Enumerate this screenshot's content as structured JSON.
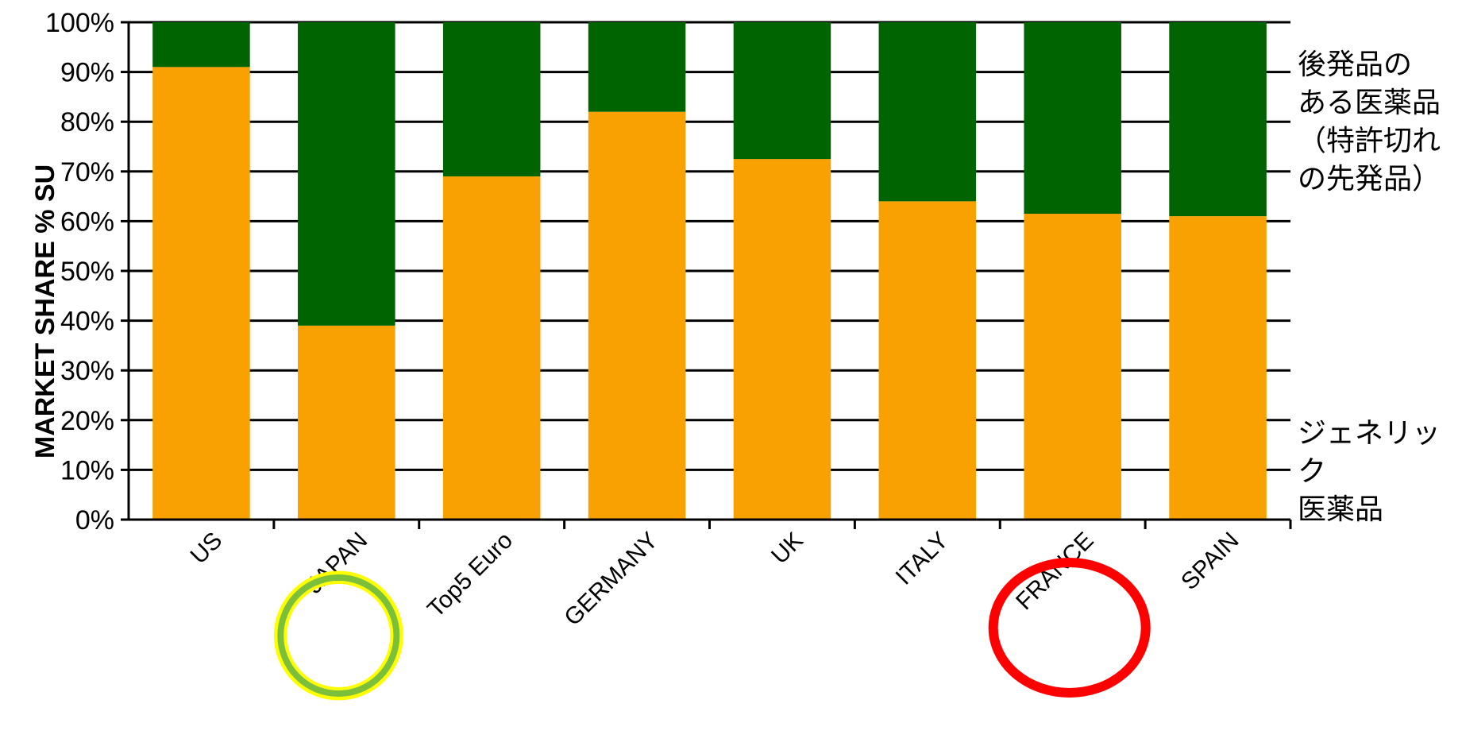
{
  "chart_data": {
    "type": "bar",
    "stacked": true,
    "title": "",
    "xlabel": "",
    "ylabel": "MARKET SHARE % SU",
    "ylim": [
      0,
      100
    ],
    "yticks": [
      "0%",
      "10%",
      "20%",
      "30%",
      "40%",
      "50%",
      "60%",
      "70%",
      "80%",
      "90%",
      "100%"
    ],
    "grid": true,
    "categories": [
      "US",
      "JAPAN",
      "Top5 Euro",
      "GERMANY",
      "UK",
      "ITALY",
      "FRANCE",
      "SPAIN"
    ],
    "series": [
      {
        "name": "ジェネリック医薬品",
        "color": "#f8a100",
        "values": [
          91,
          39,
          69,
          82,
          72.5,
          64,
          61.5,
          61
        ]
      },
      {
        "name": "後発品のある医薬品（特許切れの先発品）",
        "color": "#006400",
        "values": [
          9,
          61,
          31,
          18,
          27.5,
          36,
          38.5,
          39
        ]
      }
    ],
    "legend": {
      "brand_label": "後発品の\nある医薬品\n（特許切れ\nの先発品）",
      "generic_label": "ジェネリック\n医薬品",
      "placement": "right"
    },
    "annotations": [
      {
        "category": "JAPAN",
        "shape": "circle",
        "color": "#7cbf3a",
        "border_color": "#ffff00"
      },
      {
        "category": "FRANCE",
        "shape": "ellipse",
        "color": "#ff0000"
      }
    ]
  }
}
